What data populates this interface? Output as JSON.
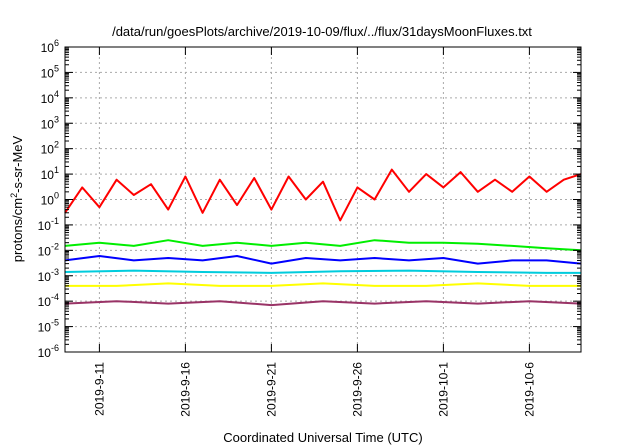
{
  "chart_data": {
    "type": "line",
    "title": "/data/run/goesPlots/archive/2019-10-09/flux/../flux/31daysMoonFluxes.txt",
    "xlabel": "Coordinated Universal Time (UTC)",
    "ylabel_parts": {
      "base": "protons/cm",
      "sup": "2",
      "rest": "-s-sr-MeV"
    },
    "yscale": "log",
    "ylim_exp": [
      -6,
      6
    ],
    "ytick_base": "10",
    "ytick_exponents": [
      "-6",
      "-5",
      "-4",
      "-3",
      "-2",
      "-1",
      "0",
      "1",
      "2",
      "3",
      "4",
      "5",
      "6"
    ],
    "xlim": [
      "2019-09-09",
      "2019-10-09"
    ],
    "xticks": [
      {
        "date": "2019-09-11",
        "label": "2019-9-11"
      },
      {
        "date": "2019-09-16",
        "label": "2019-9-16"
      },
      {
        "date": "2019-09-21",
        "label": "2019-9-21"
      },
      {
        "date": "2019-09-26",
        "label": "2019-9-26"
      },
      {
        "date": "2019-10-01",
        "label": "2019-10-1"
      },
      {
        "date": "2019-10-06",
        "label": "2019-10-6"
      }
    ],
    "grid": true,
    "series": [
      {
        "color": "#ff0000",
        "x": [
          "2019-09-09",
          "2019-09-10",
          "2019-09-11",
          "2019-09-12",
          "2019-09-13",
          "2019-09-14",
          "2019-09-15",
          "2019-09-16",
          "2019-09-17",
          "2019-09-18",
          "2019-09-19",
          "2019-09-20",
          "2019-09-21",
          "2019-09-22",
          "2019-09-23",
          "2019-09-24",
          "2019-09-25",
          "2019-09-26",
          "2019-09-27",
          "2019-09-28",
          "2019-09-29",
          "2019-09-30",
          "2019-10-01",
          "2019-10-02",
          "2019-10-03",
          "2019-10-04",
          "2019-10-05",
          "2019-10-06",
          "2019-10-07",
          "2019-10-08",
          "2019-10-09"
        ],
        "y": [
          0.3,
          3,
          0.5,
          6,
          1.5,
          4,
          0.4,
          8,
          0.3,
          6,
          0.6,
          7,
          0.4,
          8,
          1,
          5,
          0.15,
          3,
          1,
          15,
          2,
          10,
          3,
          12,
          2,
          6,
          2,
          8,
          2,
          6,
          10
        ]
      },
      {
        "color": "#00ee00",
        "x": [
          "2019-09-09",
          "2019-09-11",
          "2019-09-13",
          "2019-09-15",
          "2019-09-17",
          "2019-09-19",
          "2019-09-21",
          "2019-09-23",
          "2019-09-25",
          "2019-09-27",
          "2019-09-29",
          "2019-10-01",
          "2019-10-03",
          "2019-10-05",
          "2019-10-07",
          "2019-10-09"
        ],
        "y": [
          0.015,
          0.02,
          0.015,
          0.025,
          0.015,
          0.02,
          0.015,
          0.02,
          0.015,
          0.025,
          0.02,
          0.02,
          0.018,
          0.015,
          0.012,
          0.01
        ]
      },
      {
        "color": "#00ccdd",
        "x": [
          "2019-09-09",
          "2019-09-13",
          "2019-09-17",
          "2019-09-21",
          "2019-09-25",
          "2019-09-29",
          "2019-10-03",
          "2019-10-07",
          "2019-10-09"
        ],
        "y": [
          0.0014,
          0.0016,
          0.0014,
          0.0013,
          0.0015,
          0.0016,
          0.0014,
          0.0013,
          0.0013
        ]
      },
      {
        "color": "#0000ff",
        "x": [
          "2019-09-09",
          "2019-09-11",
          "2019-09-13",
          "2019-09-15",
          "2019-09-17",
          "2019-09-19",
          "2019-09-21",
          "2019-09-23",
          "2019-09-25",
          "2019-09-27",
          "2019-09-29",
          "2019-10-01",
          "2019-10-03",
          "2019-10-05",
          "2019-10-07",
          "2019-10-09"
        ],
        "y": [
          0.004,
          0.006,
          0.004,
          0.005,
          0.004,
          0.006,
          0.003,
          0.005,
          0.004,
          0.005,
          0.004,
          0.005,
          0.003,
          0.004,
          0.004,
          0.003
        ]
      },
      {
        "color": "#ffff00",
        "x": [
          "2019-09-09",
          "2019-09-12",
          "2019-09-15",
          "2019-09-18",
          "2019-09-21",
          "2019-09-24",
          "2019-09-27",
          "2019-09-30",
          "2019-10-03",
          "2019-10-06",
          "2019-10-09"
        ],
        "y": [
          0.0004,
          0.0004,
          0.0005,
          0.0004,
          0.0004,
          0.0005,
          0.0004,
          0.0004,
          0.0005,
          0.0004,
          0.0004
        ]
      },
      {
        "color": "#993366",
        "x": [
          "2019-09-09",
          "2019-09-12",
          "2019-09-15",
          "2019-09-18",
          "2019-09-21",
          "2019-09-24",
          "2019-09-27",
          "2019-09-30",
          "2019-10-03",
          "2019-10-06",
          "2019-10-09"
        ],
        "y": [
          8e-05,
          0.0001,
          8e-05,
          0.0001,
          7e-05,
          0.0001,
          8e-05,
          0.0001,
          8e-05,
          0.0001,
          8e-05
        ]
      }
    ]
  }
}
